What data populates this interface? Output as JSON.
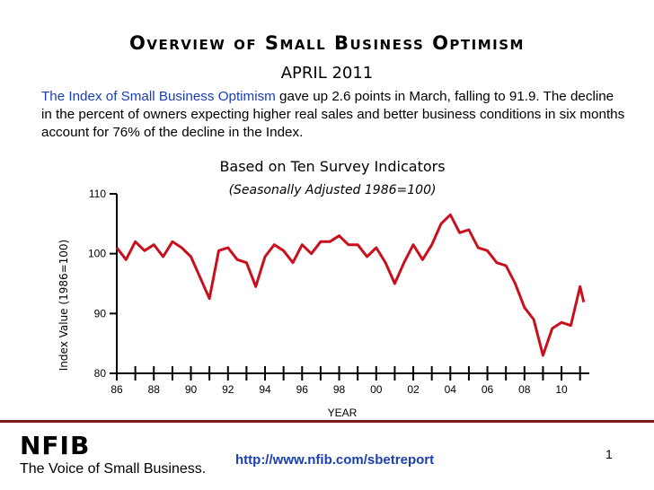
{
  "slide": {
    "title": "Overview of Small Business Optimism",
    "subtitle": "APRIL 2011",
    "summary_highlight": "The Index of Small Business Optimism",
    "summary_rest": " gave up 2.6 points in March, falling to 91.9.  The decline in the percent of owners expecting higher real sales and better business conditions in six months account for 76% of the decline in the Index.",
    "url": "http://www.nfib.com/sbetreport",
    "page_number": "1"
  },
  "logo": {
    "name": "NFIB",
    "tagline": "The Voice of Small Business."
  },
  "colors": {
    "series": "#c8101e",
    "link": "#1a3fb0",
    "rule": "#7a1a1a"
  },
  "chart_data": {
    "type": "line",
    "title": "Based on Ten Survey Indicators",
    "subtitle": "(Seasonally Adjusted 1986=100)",
    "xlabel": "YEAR",
    "ylabel": "Index Value (1986=100)",
    "xlim": [
      1986,
      2011.5
    ],
    "ylim": [
      80,
      110
    ],
    "yticks": [
      80,
      90,
      100,
      110
    ],
    "xtick_values": [
      1986,
      1988,
      1990,
      1992,
      1994,
      1996,
      1998,
      2000,
      2002,
      2004,
      2006,
      2008,
      2010
    ],
    "xtick_labels": [
      "86",
      "88",
      "90",
      "92",
      "94",
      "96",
      "98",
      "00",
      "02",
      "04",
      "06",
      "08",
      "10"
    ],
    "series": [
      {
        "name": "Index of Small Business Optimism",
        "x": [
          1986.0,
          1986.5,
          1987.0,
          1987.5,
          1988.0,
          1988.5,
          1989.0,
          1989.5,
          1990.0,
          1990.5,
          1991.0,
          1991.5,
          1992.0,
          1992.5,
          1993.0,
          1993.5,
          1994.0,
          1994.5,
          1995.0,
          1995.5,
          1996.0,
          1996.5,
          1997.0,
          1997.5,
          1998.0,
          1998.5,
          1999.0,
          1999.5,
          2000.0,
          2000.5,
          2001.0,
          2001.5,
          2002.0,
          2002.5,
          2003.0,
          2003.5,
          2004.0,
          2004.5,
          2005.0,
          2005.5,
          2006.0,
          2006.5,
          2007.0,
          2007.5,
          2008.0,
          2008.5,
          2009.0,
          2009.5,
          2010.0,
          2010.5,
          2011.0,
          2011.2
        ],
        "values": [
          101.0,
          99.0,
          102.0,
          100.5,
          101.5,
          99.5,
          102.0,
          101.0,
          99.5,
          96.0,
          92.5,
          100.5,
          101.0,
          99.0,
          98.5,
          94.5,
          99.5,
          101.5,
          100.5,
          98.5,
          101.5,
          100.0,
          102.0,
          102.0,
          103.0,
          101.5,
          101.5,
          99.5,
          101.0,
          98.5,
          95.0,
          98.5,
          101.5,
          99.0,
          101.5,
          105.0,
          106.5,
          103.5,
          104.0,
          101.0,
          100.5,
          98.5,
          98.0,
          95.0,
          91.0,
          89.0,
          83.0,
          87.5,
          88.5,
          88.0,
          94.5,
          91.9
        ]
      }
    ]
  }
}
